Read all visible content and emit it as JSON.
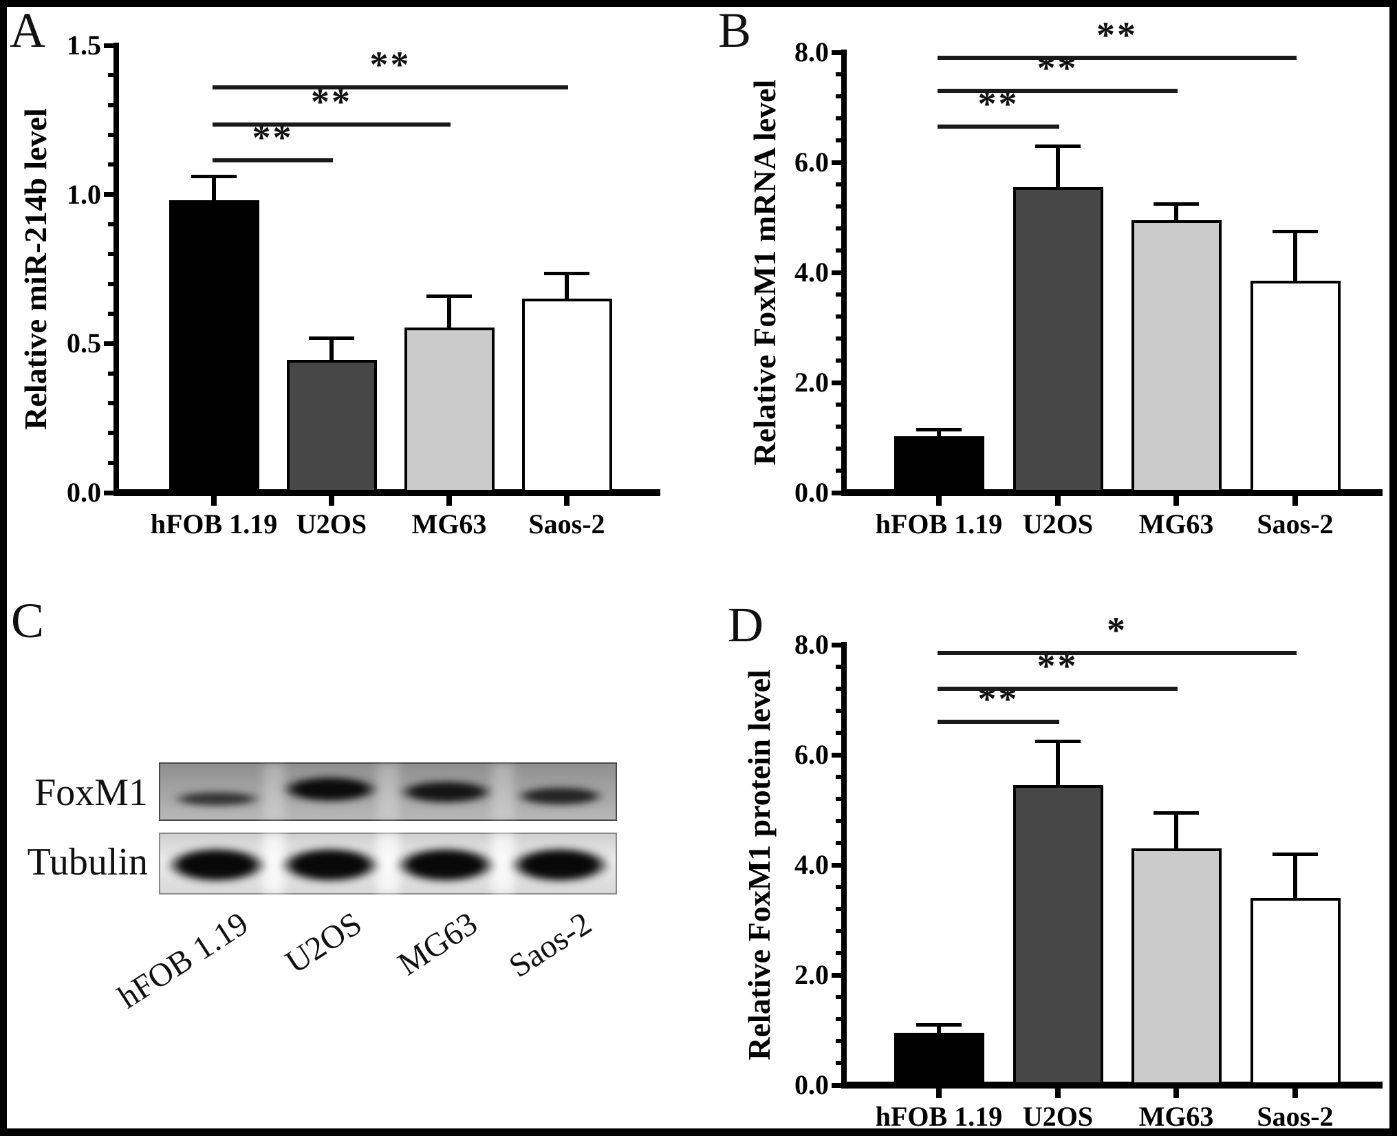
{
  "panel_letters": {
    "a": "A",
    "b": "B",
    "c": "C",
    "d": "D"
  },
  "chart_data": [
    {
      "id": "a",
      "panel": "A",
      "type": "bar",
      "title": "",
      "xlabel": "",
      "ylabel": "Relative miR-214b level",
      "categories": [
        "hFOB 1.19",
        "U2OS",
        "MG63",
        "Saos-2"
      ],
      "values": [
        0.98,
        0.445,
        0.555,
        0.65
      ],
      "errors": [
        0.08,
        0.072,
        0.105,
        0.085
      ],
      "bar_colors": [
        "#000000",
        "#474747",
        "#cbcbcb",
        "#ffffff"
      ],
      "ylim": [
        0,
        1.5
      ],
      "yticks": [
        "0.0",
        "0.5",
        "1.0",
        "1.5"
      ],
      "major_tick_step": 0.5,
      "minor_tick_step": 0.1,
      "grid": false,
      "legend": "none",
      "significance": [
        {
          "from": 0,
          "to": 1,
          "y": 1.115,
          "label": "**"
        },
        {
          "from": 0,
          "to": 2,
          "y": 1.235,
          "label": "**"
        },
        {
          "from": 0,
          "to": 3,
          "y": 1.36,
          "label": "**"
        }
      ]
    },
    {
      "id": "b",
      "panel": "B",
      "type": "bar",
      "title": "",
      "xlabel": "",
      "ylabel": "Relative FoxM1 mRNA level",
      "categories": [
        "hFOB 1.19",
        "U2OS",
        "MG63",
        "Saos-2"
      ],
      "values": [
        1.02,
        5.55,
        4.95,
        3.85
      ],
      "errors": [
        0.13,
        0.75,
        0.3,
        0.9
      ],
      "bar_colors": [
        "#000000",
        "#474747",
        "#cbcbcb",
        "#ffffff"
      ],
      "ylim": [
        0,
        8
      ],
      "yticks": [
        "0.0",
        "2.0",
        "4.0",
        "6.0",
        "8.0"
      ],
      "major_tick_step": 2,
      "minor_tick_step": 0.4,
      "grid": false,
      "legend": "none",
      "significance": [
        {
          "from": 0,
          "to": 1,
          "y": 6.65,
          "label": "**"
        },
        {
          "from": 0,
          "to": 2,
          "y": 7.3,
          "label": "**"
        },
        {
          "from": 0,
          "to": 3,
          "y": 7.9,
          "label": "**"
        }
      ]
    },
    {
      "id": "d",
      "panel": "D",
      "type": "bar",
      "title": "",
      "xlabel": "",
      "ylabel": "Relative FoxM1 protein level",
      "categories": [
        "hFOB 1.19",
        "U2OS",
        "MG63",
        "Saos-2"
      ],
      "values": [
        0.95,
        5.45,
        4.3,
        3.4
      ],
      "errors": [
        0.15,
        0.8,
        0.65,
        0.8
      ],
      "bar_colors": [
        "#000000",
        "#474747",
        "#cbcbcb",
        "#ffffff"
      ],
      "ylim": [
        0,
        8
      ],
      "yticks": [
        "0.0",
        "2.0",
        "4.0",
        "6.0",
        "8.0"
      ],
      "major_tick_step": 2,
      "minor_tick_step": 0.4,
      "grid": false,
      "legend": "none",
      "significance": [
        {
          "from": 0,
          "to": 1,
          "y": 6.6,
          "label": "**"
        },
        {
          "from": 0,
          "to": 2,
          "y": 7.2,
          "label": "**"
        },
        {
          "from": 0,
          "to": 3,
          "y": 7.85,
          "label": "*"
        }
      ]
    }
  ],
  "blot": {
    "panel": "C",
    "lanes": [
      "hFOB 1.19",
      "U2OS",
      "MG63",
      "Saos-2"
    ],
    "rows": [
      {
        "label": "FoxM1",
        "band_intensity": [
          "weak",
          "strong",
          "strong2",
          "medium"
        ]
      },
      {
        "label": "Tubulin",
        "band_intensity": [
          "loading",
          "loading",
          "loading",
          "loading"
        ]
      }
    ]
  }
}
